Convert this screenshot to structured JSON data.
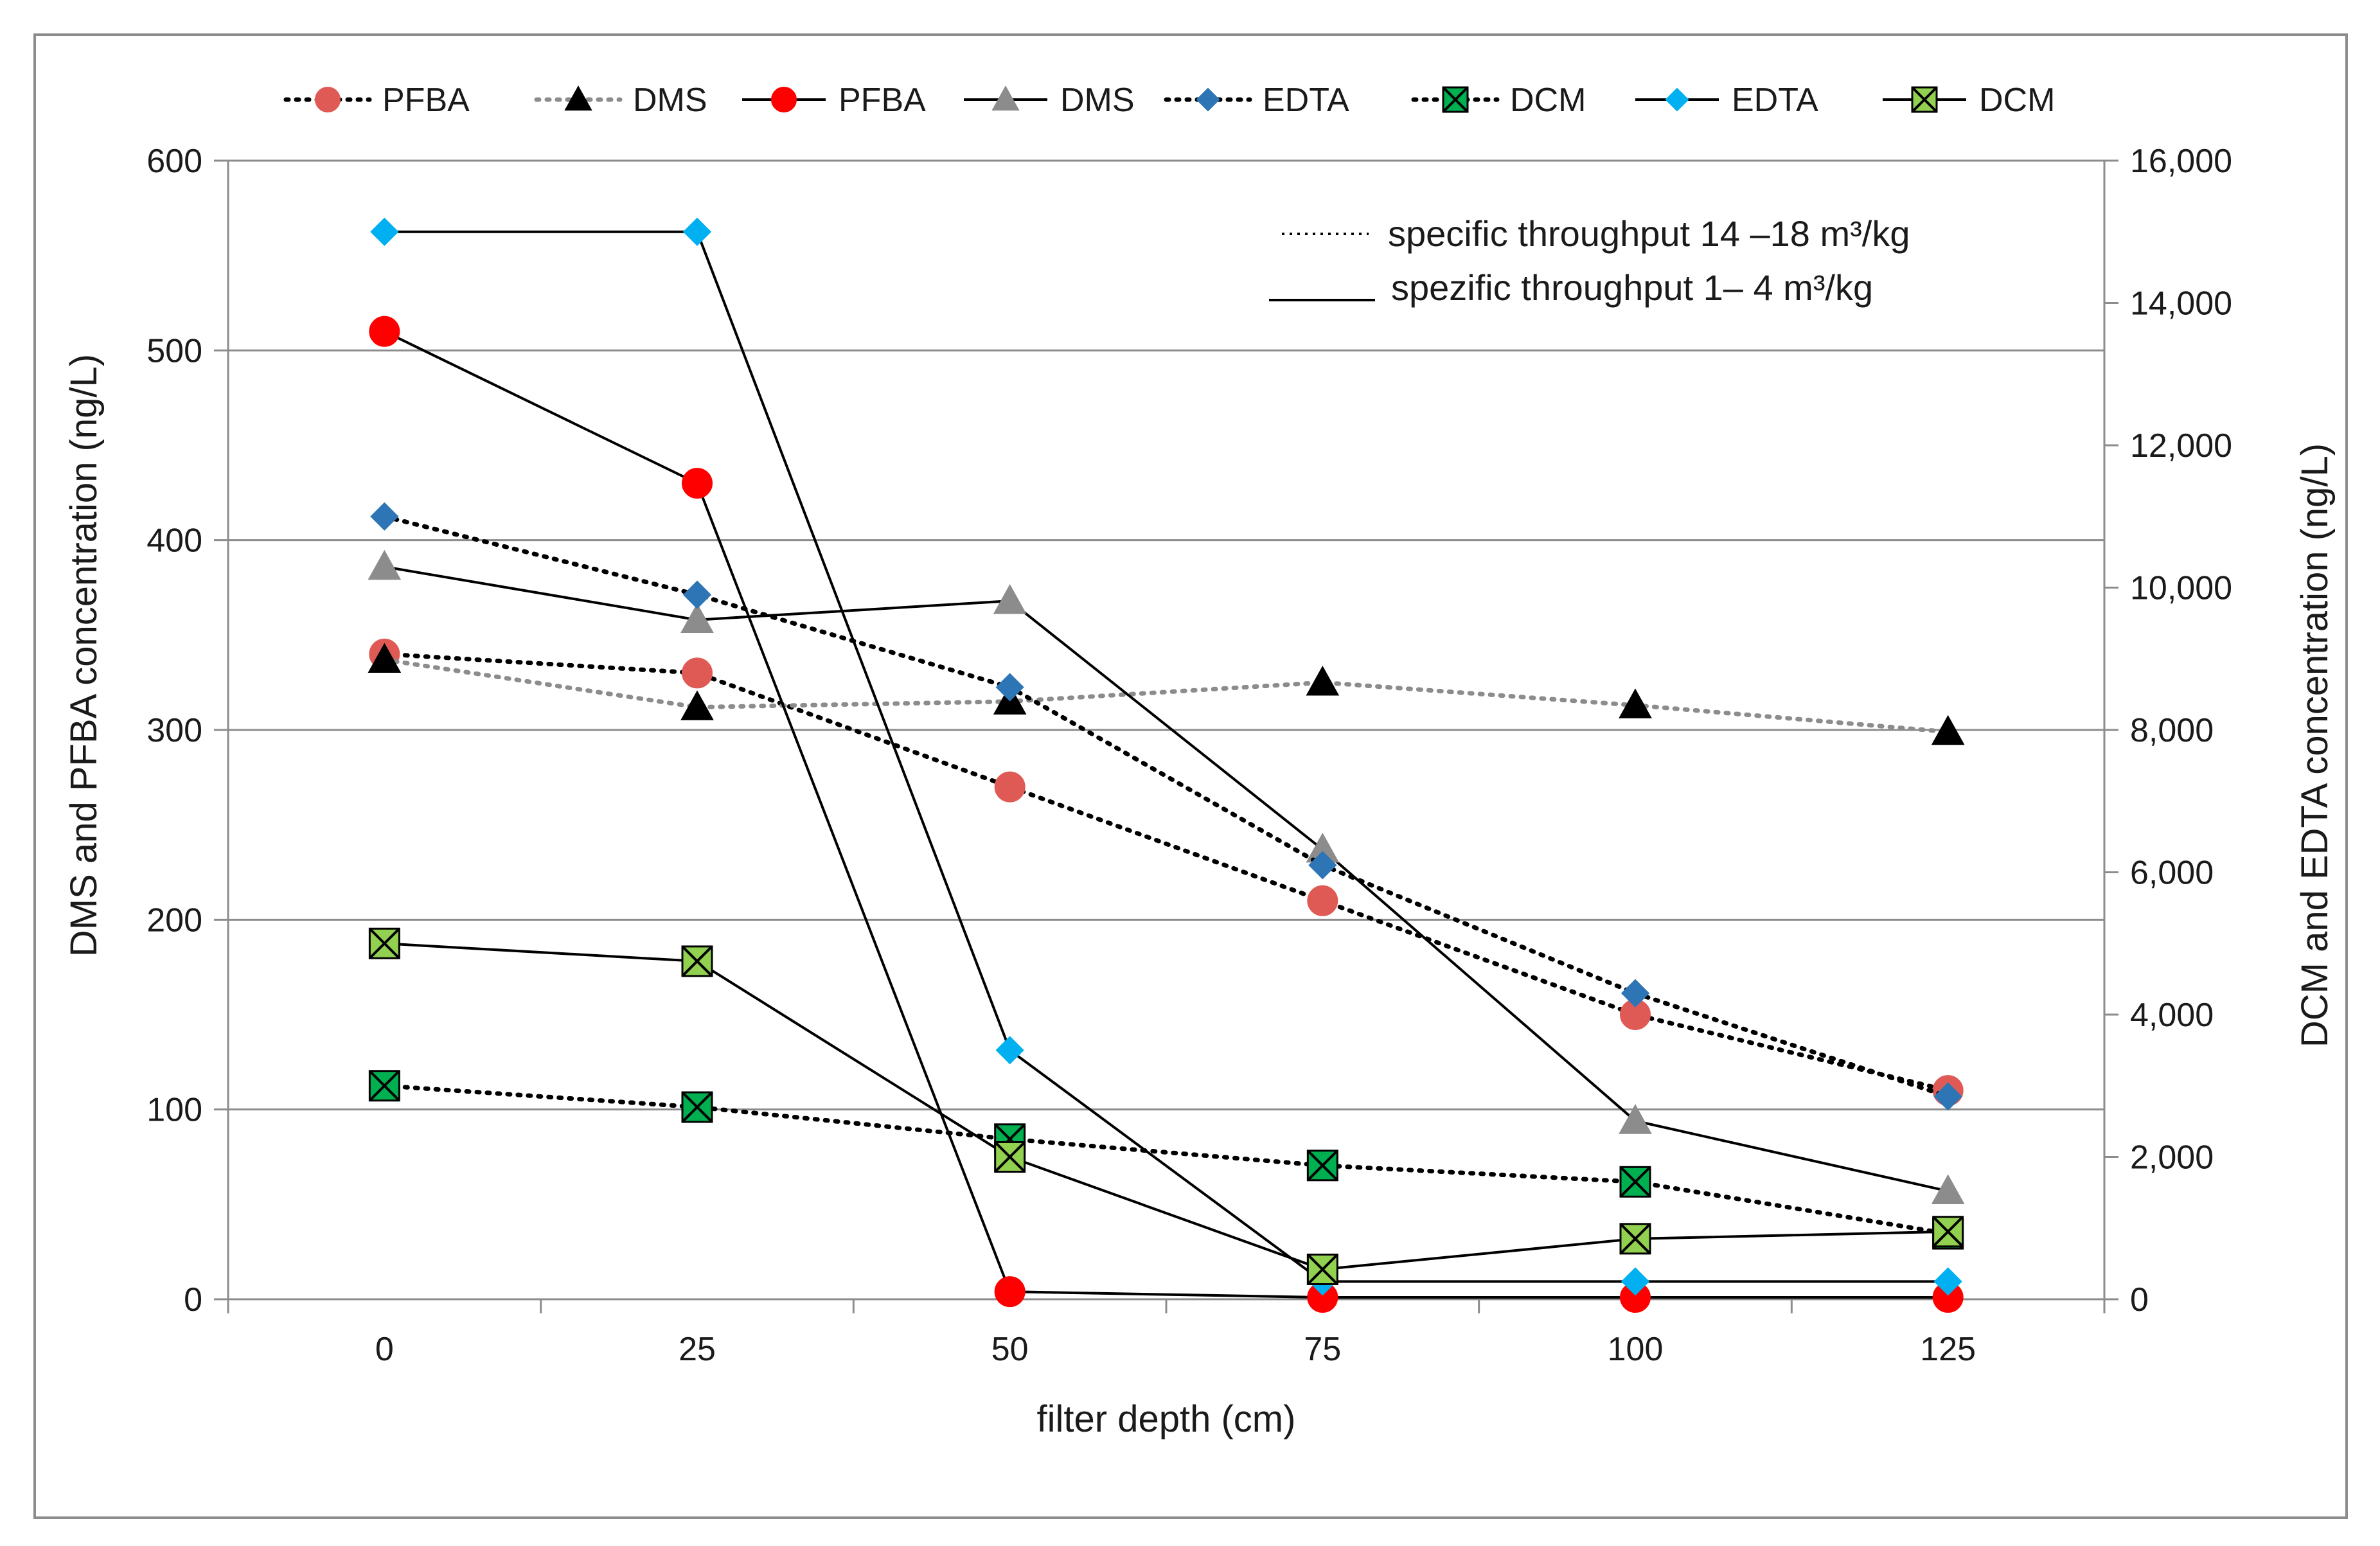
{
  "chart_data": {
    "type": "line",
    "title": "",
    "xlabel": "filter depth (cm)",
    "ylabel": "DMS and PFBA concentration (ng/L)",
    "y2label": "DCM and EDTA concentration (ng/L)",
    "x": [
      0,
      25,
      50,
      75,
      100,
      125
    ],
    "x_tick_labels": [
      "0",
      "25",
      "50",
      "75",
      "100",
      "125"
    ],
    "xlim": [
      -12.5,
      137.5
    ],
    "ylim": [
      0,
      600
    ],
    "y_ticks": [
      0,
      100,
      200,
      300,
      400,
      500,
      600
    ],
    "y_tick_labels": [
      "0",
      "100",
      "200",
      "300",
      "400",
      "500",
      "600"
    ],
    "y2lim": [
      0,
      16000
    ],
    "y2_ticks": [
      0,
      2000,
      4000,
      6000,
      8000,
      10000,
      12000,
      14000,
      16000
    ],
    "y2_tick_labels": [
      "0",
      "2,000",
      "4,000",
      "6,000",
      "8,000",
      "10,000",
      "12,000",
      "14,000",
      "16,000"
    ],
    "grid": true,
    "legend_position": "top",
    "annotations": {
      "dotted_label": "specific throughput  14 –18 m³/kg",
      "solid_label": "spezific throughput  1– 4 m³/kg"
    },
    "series": [
      {
        "name": "PFBA",
        "axis": "left",
        "line": "dotted",
        "line_color": "#000000",
        "marker": "circle",
        "marker_color": "#e05a55",
        "marker_edge": "#e05a55",
        "values": [
          340,
          330,
          270,
          210,
          150,
          110
        ]
      },
      {
        "name": "DMS",
        "axis": "left",
        "line": "dotted",
        "line_color": "#8c8c8c",
        "marker": "triangle",
        "marker_color": "#000000",
        "marker_edge": "#000000",
        "values": [
          337,
          312,
          315,
          325,
          313,
          299
        ]
      },
      {
        "name": "PFBA",
        "axis": "left",
        "line": "solid",
        "line_color": "#000000",
        "marker": "circle",
        "marker_color": "#ff0000",
        "marker_edge": "#ff0000",
        "values": [
          510,
          430,
          4,
          1,
          1,
          1
        ]
      },
      {
        "name": "DMS",
        "axis": "left",
        "line": "solid",
        "line_color": "#000000",
        "marker": "triangle",
        "marker_color": "#8c8c8c",
        "marker_edge": "#8c8c8c",
        "values": [
          386,
          358,
          368,
          237,
          94,
          57
        ]
      },
      {
        "name": "EDTA",
        "axis": "right",
        "line": "dotted",
        "line_color": "#000000",
        "marker": "diamond",
        "marker_color": "#2e75b6",
        "marker_edge": "#2e75b6",
        "values": [
          11000,
          9900,
          8600,
          6100,
          4300,
          2850
        ]
      },
      {
        "name": "DCM",
        "axis": "right",
        "line": "dotted",
        "line_color": "#000000",
        "marker": "xsquare",
        "marker_color": "#00b050",
        "marker_edge": "#000000",
        "values": [
          3000,
          2700,
          2250,
          1880,
          1650,
          920
        ]
      },
      {
        "name": "EDTA",
        "axis": "right",
        "line": "solid",
        "line_color": "#000000",
        "marker": "diamond",
        "marker_color": "#00b0f0",
        "marker_edge": "#00b0f0",
        "values": [
          15000,
          15000,
          3500,
          250,
          250,
          250
        ]
      },
      {
        "name": "DCM",
        "axis": "right",
        "line": "solid",
        "line_color": "#000000",
        "marker": "xsquare",
        "marker_color": "#92d050",
        "marker_edge": "#000000",
        "values": [
          5000,
          4750,
          2000,
          420,
          850,
          950
        ]
      }
    ]
  }
}
